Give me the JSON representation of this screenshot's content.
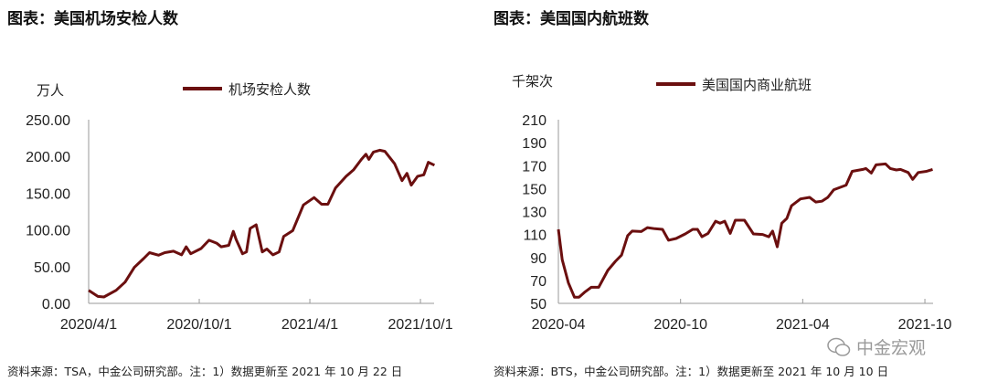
{
  "line_color": "#6b0f0f",
  "chart_data": [
    {
      "type": "line",
      "title": "图表：美国机场安检人数",
      "ylabel": "万人",
      "legend": "机场安检人数",
      "legend_position": "top-center",
      "ylim": [
        0,
        250
      ],
      "yticks": [
        "0.00",
        "50.00",
        "100.00",
        "150.00",
        "200.00",
        "250.00"
      ],
      "xlabels": [
        "2020/4/1",
        "2020/10/1",
        "2021/4/1",
        "2021/10/1"
      ],
      "x_unit": "months since 2020/4/1",
      "grid": false,
      "series": [
        {
          "name": "机场安检人数",
          "x": [
            0,
            0.5,
            0.83,
            1.49,
            1.98,
            2.48,
            2.98,
            3.3,
            3.8,
            4.13,
            4.6,
            5.04,
            5.29,
            5.54,
            6.1,
            6.53,
            6.94,
            7.19,
            7.6,
            7.85,
            8.0,
            8.35,
            8.56,
            8.76,
            9.09,
            9.42,
            9.67,
            10.0,
            10.33,
            10.58,
            11.07,
            11.65,
            12.23,
            12.64,
            12.98,
            13.39,
            13.97,
            14.38,
            14.8,
            15.04,
            15.2,
            15.45,
            15.79,
            16.07,
            16.6,
            17.0,
            17.27,
            17.5,
            17.85,
            18.18,
            18.43,
            18.76
          ],
          "values": [
            17.8,
            9.5,
            8.7,
            17.8,
            29,
            49,
            61,
            69,
            65.5,
            69,
            71,
            66,
            77,
            67.5,
            74.6,
            86,
            82,
            77,
            79,
            98,
            87,
            67.5,
            70,
            102,
            107,
            70,
            74,
            66,
            70,
            91,
            99,
            134,
            144,
            135,
            135,
            157,
            173,
            182,
            196,
            203,
            196,
            206,
            208.5,
            207,
            190,
            167,
            177,
            161,
            173,
            175,
            192,
            188
          ]
        }
      ],
      "source": "资料来源：TSA，中金公司研究部。注：1）数据更新至 2021 年 10 月 22 日"
    },
    {
      "type": "line",
      "title": "图表：美国国内航班数",
      "ylabel": "千架次",
      "legend": "美国国内商业航班",
      "legend_position": "top-center",
      "ylim": [
        50,
        210
      ],
      "yticks": [
        "50",
        "70",
        "90",
        "110",
        "130",
        "150",
        "170",
        "190",
        "210"
      ],
      "xlabels": [
        "2020-04",
        "2020-10",
        "2021-04",
        "2021-10"
      ],
      "x_unit": "months since 2020-04",
      "grid": false,
      "series": [
        {
          "name": "美国国内商业航班",
          "x": [
            0,
            0.19,
            0.49,
            0.79,
            1.01,
            1.31,
            1.61,
            1.98,
            2.43,
            2.8,
            3.1,
            3.4,
            3.62,
            4.07,
            4.37,
            4.74,
            5.11,
            5.41,
            5.78,
            6.23,
            6.6,
            6.83,
            7.05,
            7.35,
            7.72,
            7.94,
            8.17,
            8.44,
            8.69,
            9.14,
            9.58,
            10.03,
            10.33,
            10.52,
            10.75,
            10.97,
            11.22,
            11.45,
            11.89,
            12.34,
            12.64,
            12.94,
            13.23,
            13.53,
            14.13,
            14.43,
            14.95,
            15.1,
            15.37,
            15.6,
            16.07,
            16.3,
            16.6,
            16.8,
            17.18,
            17.4,
            17.67,
            18.08,
            18.38
          ],
          "values": [
            114.5,
            88,
            68,
            55.3,
            55.3,
            60,
            64,
            64,
            78.7,
            86.6,
            92,
            109,
            113,
            112.6,
            116,
            115,
            114.5,
            105,
            106.5,
            110.5,
            114.5,
            114.5,
            108,
            111,
            121.6,
            119.8,
            121.6,
            111,
            122.4,
            122.4,
            110.5,
            110,
            108,
            113,
            99.3,
            119.8,
            124,
            135,
            141,
            142.3,
            138.3,
            139,
            142.3,
            149,
            153,
            165,
            166.7,
            167.5,
            163.5,
            170.7,
            171.5,
            167.5,
            166.2,
            166.7,
            164,
            158,
            164,
            165,
            166.7
          ]
        }
      ],
      "source": "资料来源：BTS，中金公司研究部。注：1）数据更新至 2021 年 10 月 10 日"
    }
  ],
  "watermark": "中金宏观",
  "watermark_icon": "wechat-icon"
}
